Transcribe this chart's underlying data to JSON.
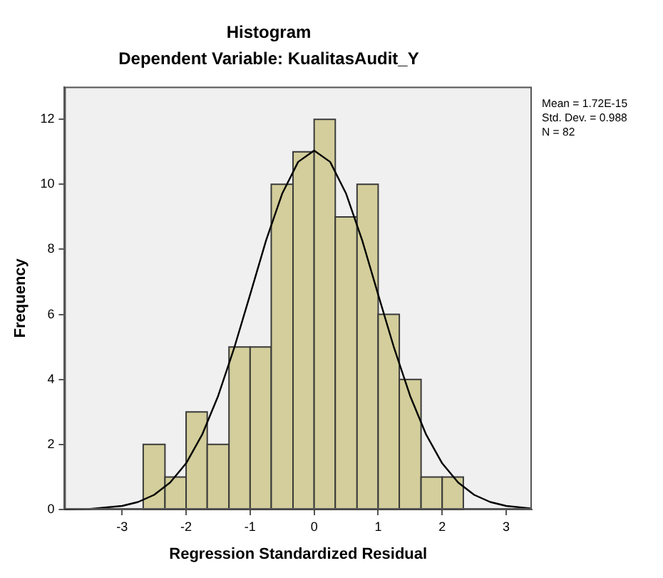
{
  "chart_data": {
    "type": "histogram",
    "title": "Histogram",
    "subtitle": "Dependent Variable: KualitasAudit_Y",
    "xlabel": "Regression Standardized Residual",
    "ylabel": "Frequency",
    "bins": [
      -2.67,
      -2.33,
      -2,
      -1.67,
      -1.33,
      -1,
      -0.67,
      -0.33,
      0,
      0.33,
      0.67,
      1,
      1.33,
      1.67,
      2,
      2.33
    ],
    "series": [
      {
        "type": "histogram",
        "color": "#d3ce9b",
        "values": [
          2,
          1,
          3,
          2,
          5,
          5,
          10,
          11,
          12,
          9,
          10,
          6,
          4,
          1,
          1
        ]
      },
      {
        "type": "line",
        "color": "#000000",
        "x": [
          -3.9,
          -3.5,
          -3,
          -2.75,
          -2.5,
          -2.25,
          -2,
          -1.75,
          -1.5,
          -1.25,
          -1,
          -0.75,
          -0.5,
          -0.25,
          0,
          0.25,
          0.5,
          0.75,
          1,
          1.25,
          1.5,
          1.75,
          2,
          2.25,
          2.5,
          2.75,
          3,
          3.4
        ],
        "values": [
          0.01,
          0.02,
          0.11,
          0.23,
          0.45,
          0.83,
          1.42,
          2.3,
          3.49,
          4.96,
          6.61,
          8.28,
          9.71,
          10.69,
          11.04,
          10.69,
          9.71,
          8.28,
          6.61,
          4.96,
          3.49,
          2.3,
          1.42,
          0.83,
          0.45,
          0.23,
          0.11,
          0.03
        ]
      }
    ],
    "xlim": [
      -3.9,
      3.4
    ],
    "xticks": [
      -3,
      -2,
      -1,
      0,
      1,
      2,
      3
    ],
    "ylim": [
      0,
      13
    ],
    "yticks": [
      0,
      2,
      4,
      6,
      8,
      10,
      12
    ],
    "grid": false,
    "legend": false,
    "marker": "none",
    "line_style": "solid",
    "annotations": [
      "Mean = 1.72E-15",
      "Std. Dev. = 0.988",
      "N = 82"
    ]
  }
}
